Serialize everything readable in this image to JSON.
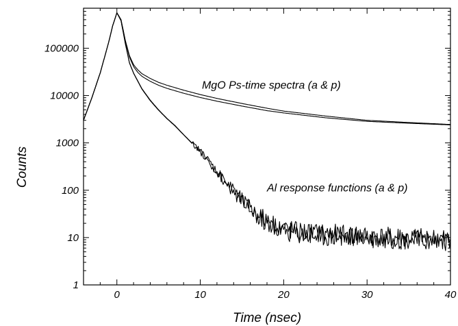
{
  "chart_data": {
    "type": "line",
    "title": "",
    "xlabel": "Time (nsec)",
    "ylabel": "Counts",
    "xlim": [
      -4,
      40
    ],
    "ylim": [
      1,
      700000
    ],
    "yscale": "log",
    "grid": false,
    "x_ticks": [
      0,
      10,
      20,
      30,
      40
    ],
    "x_tick_labels": [
      "0",
      "10",
      "20",
      "30",
      "40"
    ],
    "y_ticks": [
      1,
      10,
      100,
      1000,
      10000,
      100000
    ],
    "y_tick_labels": [
      "1",
      "10",
      "100",
      "1000",
      "10000",
      "100000"
    ],
    "line_color": "#000000",
    "annotations": [
      {
        "text": "MgO Ps-time spectra (a & p)",
        "x": 10.2,
        "y": 14000
      },
      {
        "text": "Al response functions (a & p)",
        "x": 18,
        "y": 95
      }
    ],
    "series": [
      {
        "group": "MgO Ps-time spectra",
        "x": [
          -4,
          -3,
          -2,
          -1,
          -0.5,
          0,
          0.5,
          1,
          1.5,
          2,
          2.5,
          3,
          4,
          5,
          6,
          8,
          10,
          12,
          15,
          18,
          20,
          25,
          30,
          35,
          40
        ],
        "values": [
          3000,
          9000,
          30000,
          130000,
          300000,
          560000,
          400000,
          150000,
          70000,
          45000,
          35000,
          29000,
          23000,
          19000,
          16500,
          13000,
          10500,
          8700,
          6800,
          5400,
          4700,
          3700,
          3000,
          2700,
          2450
        ]
      },
      {
        "group": "MgO Ps-time spectra",
        "x": [
          -4,
          -3,
          -2,
          -1,
          -0.5,
          0,
          0.5,
          1,
          1.5,
          2,
          2.5,
          3,
          4,
          5,
          6,
          8,
          10,
          12,
          15,
          18,
          20,
          25,
          30,
          35,
          40
        ],
        "values": [
          3000,
          9000,
          30000,
          130000,
          300000,
          560000,
          400000,
          145000,
          66000,
          41000,
          31000,
          25500,
          20000,
          16500,
          14200,
          11200,
          9100,
          7600,
          6000,
          4800,
          4300,
          3400,
          2850,
          2600,
          2400
        ]
      },
      {
        "group": "Al response functions",
        "x": [
          -4,
          -3,
          -2,
          -1,
          -0.5,
          0,
          0.5,
          1,
          1.5,
          2,
          3,
          4,
          5,
          6,
          7,
          8,
          9,
          10,
          11,
          12,
          13,
          14,
          15,
          16,
          17,
          18,
          19,
          20,
          22,
          25,
          28,
          30,
          33,
          36,
          38,
          40
        ],
        "values": [
          3000,
          9000,
          30000,
          130000,
          300000,
          560000,
          380000,
          130000,
          50000,
          30000,
          14000,
          8000,
          5000,
          3300,
          2300,
          1500,
          1000,
          680,
          420,
          250,
          150,
          95,
          60,
          40,
          29,
          22,
          18,
          15,
          13,
          12,
          11,
          10.5,
          10,
          9.5,
          9.5,
          9
        ]
      },
      {
        "group": "Al response functions",
        "x": [
          -4,
          -3,
          -2,
          -1,
          -0.5,
          0,
          0.5,
          1,
          1.5,
          2,
          3,
          4,
          5,
          6,
          7,
          8,
          9,
          10,
          11,
          12,
          13,
          14,
          15,
          16,
          17,
          18,
          19,
          20,
          22,
          25,
          28,
          30,
          33,
          36,
          38,
          40
        ],
        "values": [
          3000,
          9000,
          30000,
          130000,
          300000,
          560000,
          380000,
          128000,
          49000,
          29500,
          13700,
          7800,
          4900,
          3250,
          2250,
          1480,
          980,
          660,
          410,
          245,
          148,
          93,
          58,
          39,
          28,
          21,
          17,
          14,
          12,
          11,
          10.5,
          10,
          9.5,
          9,
          9,
          8.5
        ]
      }
    ]
  }
}
